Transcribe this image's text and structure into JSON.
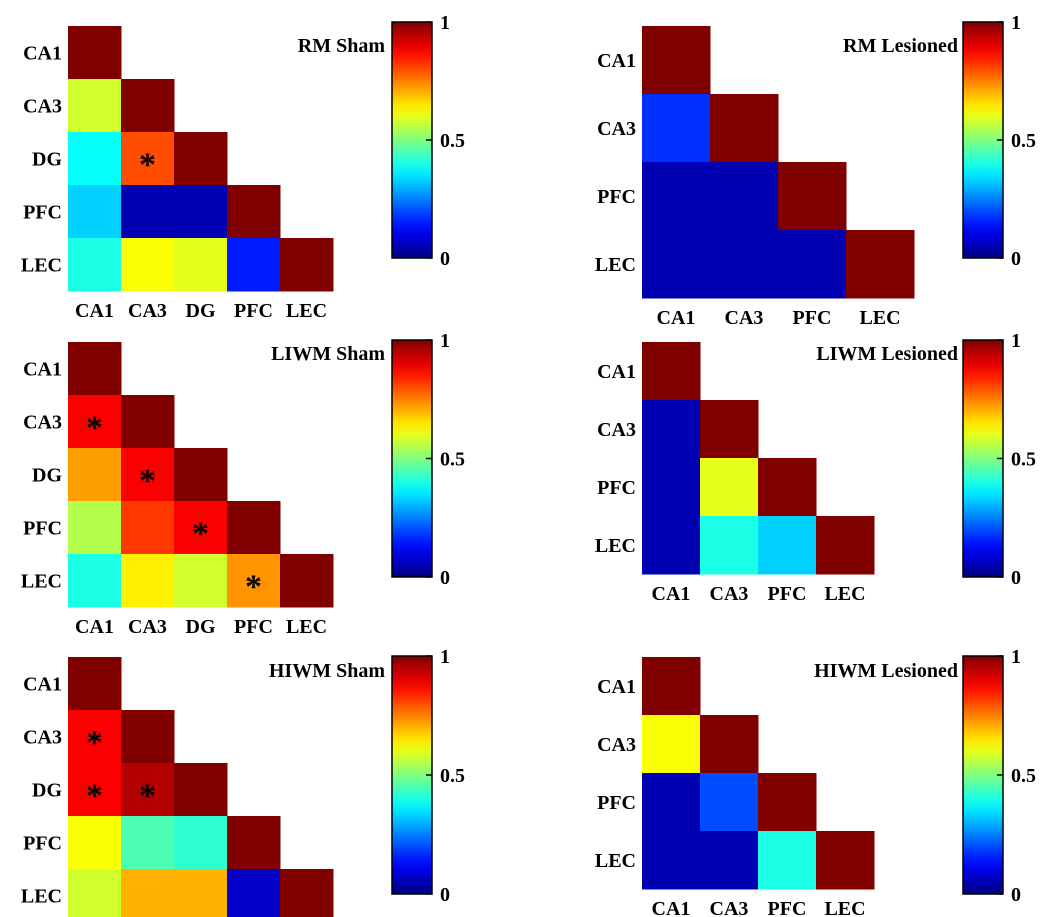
{
  "chart_data": [
    {
      "type": "heatmap",
      "title": "RM Sham",
      "labels": [
        "CA1",
        "CA3",
        "DG",
        "PFC",
        "LEC"
      ],
      "values": [
        [
          1.0
        ],
        [
          0.58,
          1.0
        ],
        [
          0.38,
          0.8,
          1.0
        ],
        [
          0.33,
          0.05,
          0.05,
          1.0
        ],
        [
          0.4,
          0.62,
          0.6,
          0.15,
          1.0
        ]
      ],
      "significant": [
        [
          2,
          1
        ]
      ],
      "colorbar": {
        "min": 0,
        "max": 1,
        "ticks": [
          "0",
          "0.5",
          "1"
        ]
      }
    },
    {
      "type": "heatmap",
      "title": "RM Lesioned",
      "labels": [
        "CA1",
        "CA3",
        "PFC",
        "LEC"
      ],
      "values": [
        [
          1.0
        ],
        [
          0.17,
          1.0
        ],
        [
          0.05,
          0.05,
          1.0
        ],
        [
          0.05,
          0.05,
          0.05,
          1.0
        ]
      ],
      "significant": [],
      "colorbar": {
        "min": 0,
        "max": 1,
        "ticks": [
          "0",
          "0.5",
          "1"
        ]
      }
    },
    {
      "type": "heatmap",
      "title": "LIWM Sham",
      "labels": [
        "CA1",
        "CA3",
        "DG",
        "PFC",
        "LEC"
      ],
      "values": [
        [
          1.0
        ],
        [
          0.88,
          1.0
        ],
        [
          0.72,
          0.88,
          1.0
        ],
        [
          0.55,
          0.82,
          0.88,
          1.0
        ],
        [
          0.4,
          0.64,
          0.58,
          0.73,
          1.0
        ]
      ],
      "significant": [
        [
          1,
          0
        ],
        [
          2,
          1
        ],
        [
          3,
          2
        ],
        [
          4,
          3
        ]
      ],
      "colorbar": {
        "min": 0,
        "max": 1,
        "ticks": [
          "0",
          "0.5",
          "1"
        ]
      }
    },
    {
      "type": "heatmap",
      "title": "LIWM Lesioned",
      "labels": [
        "CA1",
        "CA3",
        "PFC",
        "LEC"
      ],
      "values": [
        [
          1.0
        ],
        [
          0.05,
          1.0
        ],
        [
          0.05,
          0.6,
          1.0
        ],
        [
          0.05,
          0.4,
          0.33,
          1.0
        ]
      ],
      "significant": [],
      "colorbar": {
        "min": 0,
        "max": 1,
        "ticks": [
          "0",
          "0.5",
          "1"
        ]
      }
    },
    {
      "type": "heatmap",
      "title": "HIWM Sham",
      "labels": [
        "CA1",
        "CA3",
        "DG",
        "PFC",
        "LEC"
      ],
      "values": [
        [
          1.0
        ],
        [
          0.88,
          1.0
        ],
        [
          0.88,
          0.95,
          1.0
        ],
        [
          0.62,
          0.45,
          0.42,
          1.0
        ],
        [
          0.58,
          0.7,
          0.7,
          0.07,
          1.0
        ]
      ],
      "significant": [
        [
          1,
          0
        ],
        [
          2,
          0
        ],
        [
          2,
          1
        ]
      ],
      "colorbar": {
        "min": 0,
        "max": 1,
        "ticks": [
          "0",
          "0.5",
          "1"
        ]
      }
    },
    {
      "type": "heatmap",
      "title": "HIWM Lesioned",
      "labels": [
        "CA1",
        "CA3",
        "PFC",
        "LEC"
      ],
      "values": [
        [
          1.0
        ],
        [
          0.62,
          1.0
        ],
        [
          0.05,
          0.2,
          1.0
        ],
        [
          0.05,
          0.05,
          0.4,
          1.0
        ]
      ],
      "significant": [],
      "colorbar": {
        "min": 0,
        "max": 1,
        "ticks": [
          "0",
          "0.5",
          "1"
        ]
      }
    }
  ]
}
